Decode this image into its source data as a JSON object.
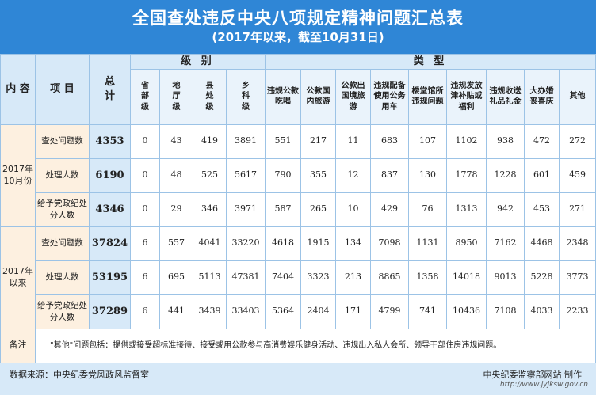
{
  "header": {
    "title": "全国查处违反中央八项规定精神问题汇总表",
    "subtitle": "(2017年以来，截至10月31日)"
  },
  "table": {
    "col_content": "内 容",
    "col_item": "项 目",
    "col_total": "总计",
    "group_level": "级 别",
    "group_type": "类 型",
    "levels": [
      "省部级",
      "地厅级",
      "县处级",
      "乡科级"
    ],
    "types": [
      "违规公款吃喝",
      "公款国内旅游",
      "公款出国境旅游",
      "违规配备使用公务用车",
      "楼堂馆所违规问题",
      "违规发放津补贴或福利",
      "违规收送礼品礼金",
      "大办婚丧喜庆",
      "其他"
    ],
    "periods": [
      {
        "label": "2017年10月份",
        "rows": [
          {
            "item": "查处问题数",
            "total": "4353",
            "values": [
              "0",
              "43",
              "419",
              "3891",
              "551",
              "217",
              "11",
              "683",
              "107",
              "1102",
              "938",
              "472",
              "272"
            ]
          },
          {
            "item": "处理人数",
            "total": "6190",
            "values": [
              "0",
              "48",
              "525",
              "5617",
              "790",
              "355",
              "12",
              "837",
              "130",
              "1778",
              "1228",
              "601",
              "459"
            ]
          },
          {
            "item": "给予党政纪处分人数",
            "total": "4346",
            "values": [
              "0",
              "29",
              "346",
              "3971",
              "587",
              "265",
              "10",
              "429",
              "76",
              "1313",
              "942",
              "453",
              "271"
            ]
          }
        ]
      },
      {
        "label": "2017年以来",
        "rows": [
          {
            "item": "查处问题数",
            "total": "37824",
            "values": [
              "6",
              "557",
              "4041",
              "33220",
              "4618",
              "1915",
              "134",
              "7098",
              "1131",
              "8950",
              "7162",
              "4468",
              "2348"
            ]
          },
          {
            "item": "处理人数",
            "total": "53195",
            "values": [
              "6",
              "695",
              "5113",
              "47381",
              "7404",
              "3323",
              "213",
              "8865",
              "1358",
              "14018",
              "9013",
              "5228",
              "3773"
            ]
          },
          {
            "item": "给予党政纪处分人数",
            "total": "37289",
            "values": [
              "6",
              "441",
              "3439",
              "33403",
              "5364",
              "2404",
              "171",
              "4799",
              "741",
              "10436",
              "7108",
              "4033",
              "2233"
            ]
          }
        ]
      }
    ],
    "note_label": "备注",
    "note_text": "\"其他\"问题包括：提供或接受超标准接待、接受或用公款参与高消费娱乐健身活动、违规出入私人会所、领导干部住房违规问题。"
  },
  "footer": {
    "source": "数据来源：中央纪委党风政风监督室",
    "credit": "中央纪委监察部网站 制作",
    "watermark": "http://www.jyjksw.gov.cn"
  }
}
